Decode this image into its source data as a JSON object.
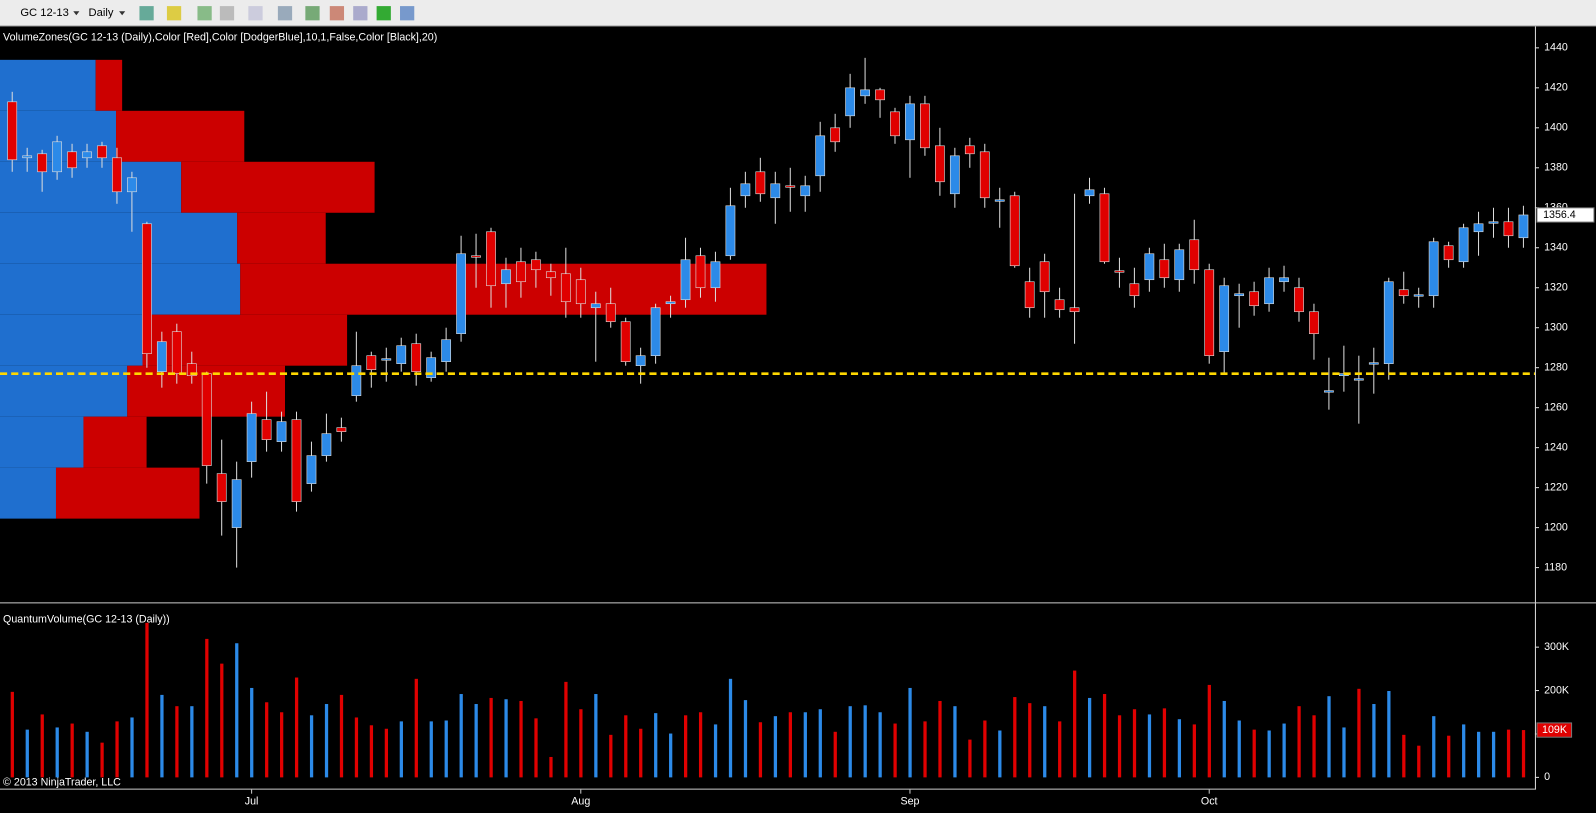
{
  "toolbar": {
    "instrument": "GC 12-13",
    "period": "Daily"
  },
  "copyright": "© 2013 NinjaTrader, LLC",
  "xticks": [
    {
      "value": 16,
      "label": "Jul"
    },
    {
      "value": 38,
      "label": "Aug"
    },
    {
      "value": 60,
      "label": "Sep"
    },
    {
      "value": 80,
      "label": "Oct"
    }
  ],
  "chart_data": [
    {
      "type": "candlestick",
      "title": "VolumeZones(GC 12-13 (Daily),Color [Red],Color [DodgerBlue],10,1,False,Color [Black],20)",
      "up_color": "#2c8ae8",
      "down_color": "#e00000",
      "open": [
        1413,
        1385,
        1387,
        1378,
        1388,
        1385,
        1391,
        1385,
        1368,
        1352,
        1278,
        1298,
        1282,
        1277,
        1227,
        1200,
        1233,
        1254,
        1243,
        1254,
        1222,
        1236,
        1250,
        1266,
        1286,
        1284,
        1282,
        1292,
        1275,
        1283,
        1297,
        1336,
        1348,
        1322,
        1333,
        1334,
        1328,
        1327,
        1324,
        1310,
        1312,
        1303,
        1281,
        1286,
        1312,
        1314,
        1336,
        1320,
        1336,
        1366,
        1378,
        1365,
        1371,
        1366,
        1376,
        1400,
        1406,
        1416,
        1419,
        1408,
        1394,
        1412,
        1391,
        1367,
        1391,
        1388,
        1363.5,
        1366,
        1323,
        1333,
        1314,
        1310,
        1366,
        1367,
        1328.5,
        1322,
        1324,
        1334,
        1324,
        1344,
        1329,
        1288,
        1316,
        1318,
        1312,
        1323,
        1320,
        1308,
        1268,
        1276,
        1274,
        1282,
        1282,
        1319,
        1316,
        1316,
        1341,
        1333,
        1348,
        1352.5,
        1353,
        1345
      ],
      "high": [
        1418,
        1390,
        1389,
        1396,
        1392,
        1392,
        1393,
        1390,
        1378,
        1353,
        1298,
        1302,
        1288,
        1278,
        1244,
        1233,
        1263,
        1268,
        1258,
        1258,
        1243,
        1257,
        1255,
        1298,
        1288,
        1290,
        1295,
        1297,
        1288,
        1300,
        1346,
        1347,
        1350,
        1335,
        1340,
        1338,
        1332,
        1340,
        1330,
        1318,
        1320,
        1305,
        1290,
        1312,
        1316,
        1345,
        1340,
        1338,
        1370,
        1378,
        1385,
        1378,
        1380,
        1376,
        1403,
        1407,
        1427,
        1435,
        1420,
        1410,
        1416,
        1416,
        1400,
        1390,
        1395,
        1392,
        1370,
        1368,
        1330,
        1337,
        1320,
        1367,
        1375,
        1370,
        1335,
        1330,
        1340,
        1342,
        1342,
        1354,
        1332,
        1325,
        1322,
        1323,
        1330,
        1331,
        1325,
        1312,
        1285,
        1291,
        1286,
        1290,
        1325,
        1328,
        1320,
        1345,
        1343,
        1352,
        1358,
        1360,
        1360,
        1361
      ],
      "low": [
        1378,
        1378,
        1368,
        1374,
        1375,
        1380,
        1380,
        1362,
        1348,
        1280,
        1270,
        1272,
        1272,
        1222,
        1196,
        1180,
        1225,
        1238,
        1238,
        1208,
        1218,
        1233,
        1243,
        1263,
        1270,
        1273,
        1278,
        1271,
        1273,
        1278,
        1293,
        1320,
        1310,
        1310,
        1315,
        1320,
        1316,
        1305,
        1305,
        1283,
        1300,
        1281,
        1272,
        1282,
        1305,
        1310,
        1315,
        1313,
        1334,
        1360,
        1363,
        1352,
        1358,
        1358,
        1368,
        1388,
        1400,
        1412,
        1405,
        1392,
        1375,
        1386,
        1366,
        1360,
        1380,
        1360,
        1350,
        1330,
        1305,
        1305,
        1305,
        1292,
        1362,
        1332,
        1320,
        1310,
        1318,
        1320,
        1318,
        1322,
        1282,
        1277,
        1300,
        1306,
        1308,
        1318,
        1303,
        1284,
        1259,
        1268,
        1252,
        1267,
        1274,
        1312,
        1310,
        1310,
        1330,
        1330,
        1336,
        1345,
        1340,
        1340
      ],
      "close": [
        1384,
        1386,
        1378,
        1393,
        1380,
        1388,
        1385,
        1368,
        1375,
        1287,
        1293,
        1277,
        1276,
        1231,
        1213,
        1224,
        1257,
        1244,
        1253,
        1213,
        1236,
        1247,
        1248,
        1281,
        1279,
        1284.5,
        1291,
        1278,
        1285,
        1294,
        1337,
        1335.5,
        1321,
        1329,
        1323,
        1329,
        1325,
        1313,
        1312,
        1312,
        1303,
        1283,
        1286,
        1310,
        1313,
        1334,
        1320,
        1333,
        1361,
        1372,
        1367,
        1372,
        1370.5,
        1371,
        1396,
        1393,
        1420,
        1419,
        1414,
        1396,
        1412,
        1390,
        1373,
        1386,
        1387,
        1365,
        1364,
        1331,
        1310,
        1318,
        1309,
        1308,
        1369,
        1333,
        1328,
        1316,
        1337,
        1325,
        1339,
        1329,
        1286,
        1321,
        1317,
        1311,
        1325,
        1325,
        1308,
        1297,
        1268.5,
        1277,
        1274.5,
        1282.5,
        1323,
        1316,
        1316.5,
        1343,
        1334,
        1350,
        1352,
        1353,
        1346,
        1356.4
      ],
      "zones": {
        "up_color": "#1f6fcf",
        "down_color": "#cc0000",
        "edges": [
          1434,
          1408.5,
          1383,
          1357.5,
          1332,
          1306.5,
          1281,
          1255.5,
          1230,
          1204.5
        ],
        "up": [
          94,
          114,
          178,
          233,
          236,
          140,
          125,
          82,
          55
        ],
        "down": [
          26,
          126,
          190,
          87,
          517,
          201,
          155,
          62,
          141
        ]
      },
      "reference_line": {
        "value": 1277,
        "color": "#ffd800"
      },
      "ylim": [
        1162.6,
        1450.7
      ],
      "yticks": [
        1180,
        1200,
        1220,
        1240,
        1260,
        1280,
        1300,
        1320,
        1340,
        1360,
        1380,
        1400,
        1420,
        1440
      ],
      "grid": false
    },
    {
      "type": "bar",
      "title": "QuantumVolume(GC 12-13 (Daily))",
      "values": [
        197,
        110,
        145,
        115,
        124,
        105,
        80,
        129,
        138,
        356,
        190,
        164,
        164,
        319,
        262,
        309,
        206,
        173,
        150,
        230,
        143,
        169,
        190,
        138,
        120,
        112,
        129,
        227,
        129,
        131,
        192,
        169,
        183,
        180,
        176,
        136,
        47,
        220,
        157,
        192,
        98,
        143,
        112,
        148,
        101,
        143,
        150,
        122,
        227,
        178,
        127,
        141,
        150,
        150,
        157,
        105,
        164,
        166,
        150,
        124,
        206,
        129,
        176,
        164,
        87,
        131,
        108,
        185,
        171,
        164,
        129,
        246,
        183,
        192,
        143,
        157,
        145,
        159,
        134,
        122,
        213,
        176,
        131,
        110,
        108,
        124,
        164,
        143,
        187,
        115,
        204,
        169,
        199,
        98,
        73,
        141,
        96,
        122,
        105,
        105,
        110,
        109
      ],
      "value_labels": [
        null,
        null,
        null,
        null,
        null,
        null,
        null,
        null,
        null,
        null,
        null,
        null,
        null,
        null,
        null,
        null,
        null,
        null,
        null,
        null,
        null,
        null,
        null,
        null,
        null,
        null,
        null,
        null,
        null,
        null,
        null,
        null,
        null,
        null,
        null,
        null,
        null,
        null,
        null,
        null,
        null,
        null,
        null,
        null,
        null,
        null,
        null,
        null,
        null,
        null,
        null,
        null,
        null,
        null,
        null,
        null,
        null,
        null,
        null,
        null,
        null,
        null,
        null,
        null,
        null,
        null,
        null,
        null,
        null,
        null,
        null,
        null,
        null,
        null,
        null,
        null,
        null,
        null,
        null,
        null,
        null,
        null,
        null,
        null,
        null,
        null,
        null,
        null,
        null,
        null,
        null,
        null,
        null,
        null,
        null,
        null,
        null,
        null,
        null,
        null,
        null,
        "109K"
      ],
      "colors": [
        "#e00000",
        "#2c8ae8",
        "#e00000",
        "#2c8ae8",
        "#e00000",
        "#2c8ae8",
        "#e00000",
        "#e00000",
        "#2c8ae8",
        "#e00000",
        "#2c8ae8",
        "#e00000",
        "#2c8ae8",
        "#e00000",
        "#e00000",
        "#2c8ae8",
        "#2c8ae8",
        "#e00000",
        "#e00000",
        "#e00000",
        "#2c8ae8",
        "#2c8ae8",
        "#e00000",
        "#e00000",
        "#e00000",
        "#e00000",
        "#2c8ae8",
        "#e00000",
        "#2c8ae8",
        "#2c8ae8",
        "#2c8ae8",
        "#2c8ae8",
        "#e00000",
        "#2c8ae8",
        "#e00000",
        "#e00000",
        "#e00000",
        "#e00000",
        "#e00000",
        "#2c8ae8",
        "#e00000",
        "#e00000",
        "#e00000",
        "#2c8ae8",
        "#2c8ae8",
        "#e00000",
        "#e00000",
        "#2c8ae8",
        "#2c8ae8",
        "#2c8ae8",
        "#e00000",
        "#2c8ae8",
        "#e00000",
        "#2c8ae8",
        "#2c8ae8",
        "#e00000",
        "#2c8ae8",
        "#2c8ae8",
        "#2c8ae8",
        "#e00000",
        "#2c8ae8",
        "#e00000",
        "#e00000",
        "#2c8ae8",
        "#e00000",
        "#e00000",
        "#2c8ae8",
        "#e00000",
        "#e00000",
        "#2c8ae8",
        "#e00000",
        "#e00000",
        "#2c8ae8",
        "#e00000",
        "#e00000",
        "#e00000",
        "#2c8ae8",
        "#e00000",
        "#2c8ae8",
        "#e00000",
        "#e00000",
        "#2c8ae8",
        "#2c8ae8",
        "#e00000",
        "#2c8ae8",
        "#2c8ae8",
        "#e00000",
        "#e00000",
        "#2c8ae8",
        "#2c8ae8",
        "#e00000",
        "#2c8ae8",
        "#2c8ae8",
        "#e00000",
        "#e00000",
        "#2c8ae8",
        "#e00000",
        "#2c8ae8",
        "#2c8ae8",
        "#2c8ae8",
        "#e00000",
        "#e00000"
      ],
      "ylim": [
        -25.8,
        400.8
      ],
      "yticks": [
        0,
        {
          "value": 100,
          "label": "100K"
        },
        {
          "value": 200,
          "label": "200K"
        },
        {
          "value": 300,
          "label": "300K"
        }
      ]
    }
  ]
}
